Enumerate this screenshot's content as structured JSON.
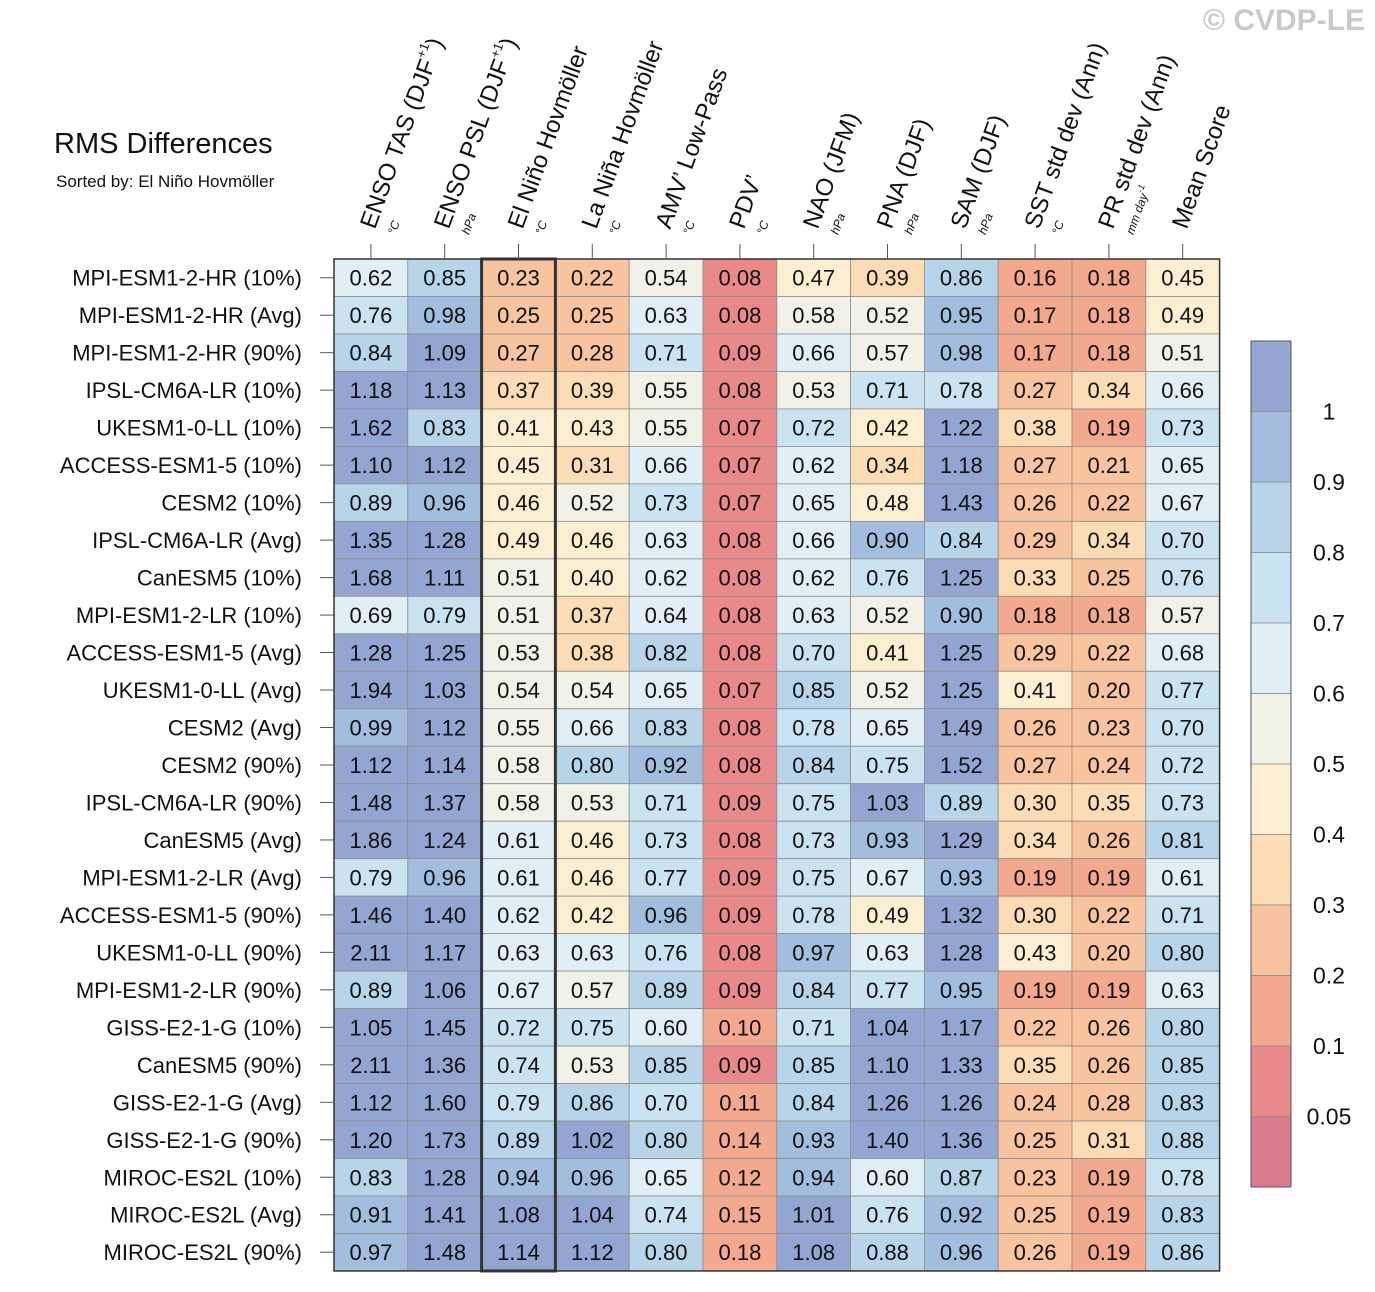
{
  "watermark": "© CVDP-LE",
  "chart_data": {
    "type": "heatmap",
    "title": "RMS Differences",
    "subtitle": "Sorted by: El Niño Hovmöller",
    "columns": [
      {
        "label": "ENSO TAS (DJF",
        "sup": "+1",
        "close": ")",
        "unit": "°C"
      },
      {
        "label": "ENSO PSL (DJF",
        "sup": "+1",
        "close": ")",
        "unit": "hPa"
      },
      {
        "label": "El Niño Hovmöller",
        "unit": "°C"
      },
      {
        "label": "La Niña Hovmöller",
        "unit": "°C"
      },
      {
        "label": "AMV’ Low-Pass",
        "unit": "°C"
      },
      {
        "label": "PDV’",
        "unit": "°C"
      },
      {
        "label": "NAO (JFM)",
        "unit": "hPa"
      },
      {
        "label": "PNA (DJF)",
        "unit": "hPa"
      },
      {
        "label": "SAM (DJF)",
        "unit": "hPa"
      },
      {
        "label": "SST std dev (Ann)",
        "unit": "°C"
      },
      {
        "label": "PR std dev (Ann)",
        "unit": "mm day",
        "unit_sup": "-1"
      },
      {
        "label": "Mean Score",
        "unit": ""
      }
    ],
    "sorted_column": "El Niño Hovmöller",
    "rows": [
      {
        "name": "MPI-ESM1-2-HR (10%)",
        "values": [
          0.62,
          0.85,
          0.23,
          0.22,
          0.54,
          0.08,
          0.47,
          0.39,
          0.86,
          0.16,
          0.18,
          0.45
        ]
      },
      {
        "name": "MPI-ESM1-2-HR (Avg)",
        "values": [
          0.76,
          0.98,
          0.25,
          0.25,
          0.63,
          0.08,
          0.58,
          0.52,
          0.95,
          0.17,
          0.18,
          0.49
        ]
      },
      {
        "name": "MPI-ESM1-2-HR (90%)",
        "values": [
          0.84,
          1.09,
          0.27,
          0.28,
          0.71,
          0.09,
          0.66,
          0.57,
          0.98,
          0.17,
          0.18,
          0.51
        ]
      },
      {
        "name": "IPSL-CM6A-LR (10%)",
        "values": [
          1.18,
          1.13,
          0.37,
          0.39,
          0.55,
          0.08,
          0.53,
          0.71,
          0.78,
          0.27,
          0.34,
          0.66
        ]
      },
      {
        "name": "UKESM1-0-LL (10%)",
        "values": [
          1.62,
          0.83,
          0.41,
          0.43,
          0.55,
          0.07,
          0.72,
          0.42,
          1.22,
          0.38,
          0.19,
          0.73
        ]
      },
      {
        "name": "ACCESS-ESM1-5 (10%)",
        "values": [
          1.1,
          1.12,
          0.45,
          0.31,
          0.66,
          0.07,
          0.62,
          0.34,
          1.18,
          0.27,
          0.21,
          0.65
        ]
      },
      {
        "name": "CESM2 (10%)",
        "values": [
          0.89,
          0.96,
          0.46,
          0.52,
          0.73,
          0.07,
          0.65,
          0.48,
          1.43,
          0.26,
          0.22,
          0.67
        ]
      },
      {
        "name": "IPSL-CM6A-LR (Avg)",
        "values": [
          1.35,
          1.28,
          0.49,
          0.46,
          0.63,
          0.08,
          0.66,
          0.9,
          0.84,
          0.29,
          0.34,
          0.7
        ]
      },
      {
        "name": "CanESM5 (10%)",
        "values": [
          1.68,
          1.11,
          0.51,
          0.4,
          0.62,
          0.08,
          0.62,
          0.76,
          1.25,
          0.33,
          0.25,
          0.76
        ]
      },
      {
        "name": "MPI-ESM1-2-LR (10%)",
        "values": [
          0.69,
          0.79,
          0.51,
          0.37,
          0.64,
          0.08,
          0.63,
          0.52,
          0.9,
          0.18,
          0.18,
          0.57
        ]
      },
      {
        "name": "ACCESS-ESM1-5 (Avg)",
        "values": [
          1.28,
          1.25,
          0.53,
          0.38,
          0.82,
          0.08,
          0.7,
          0.41,
          1.25,
          0.29,
          0.22,
          0.68
        ]
      },
      {
        "name": "UKESM1-0-LL (Avg)",
        "values": [
          1.94,
          1.03,
          0.54,
          0.54,
          0.65,
          0.07,
          0.85,
          0.52,
          1.25,
          0.41,
          0.2,
          0.77
        ]
      },
      {
        "name": "CESM2 (Avg)",
        "values": [
          0.99,
          1.12,
          0.55,
          0.66,
          0.83,
          0.08,
          0.78,
          0.65,
          1.49,
          0.26,
          0.23,
          0.7
        ]
      },
      {
        "name": "CESM2 (90%)",
        "values": [
          1.12,
          1.14,
          0.58,
          0.8,
          0.92,
          0.08,
          0.84,
          0.75,
          1.52,
          0.27,
          0.24,
          0.72
        ]
      },
      {
        "name": "IPSL-CM6A-LR (90%)",
        "values": [
          1.48,
          1.37,
          0.58,
          0.53,
          0.71,
          0.09,
          0.75,
          1.03,
          0.89,
          0.3,
          0.35,
          0.73
        ]
      },
      {
        "name": "CanESM5 (Avg)",
        "values": [
          1.86,
          1.24,
          0.61,
          0.46,
          0.73,
          0.08,
          0.73,
          0.93,
          1.29,
          0.34,
          0.26,
          0.81
        ]
      },
      {
        "name": "MPI-ESM1-2-LR (Avg)",
        "values": [
          0.79,
          0.96,
          0.61,
          0.46,
          0.77,
          0.09,
          0.75,
          0.67,
          0.93,
          0.19,
          0.19,
          0.61
        ]
      },
      {
        "name": "ACCESS-ESM1-5 (90%)",
        "values": [
          1.46,
          1.4,
          0.62,
          0.42,
          0.96,
          0.09,
          0.78,
          0.49,
          1.32,
          0.3,
          0.22,
          0.71
        ]
      },
      {
        "name": "UKESM1-0-LL (90%)",
        "values": [
          2.11,
          1.17,
          0.63,
          0.63,
          0.76,
          0.08,
          0.97,
          0.63,
          1.28,
          0.43,
          0.2,
          0.8
        ]
      },
      {
        "name": "MPI-ESM1-2-LR (90%)",
        "values": [
          0.89,
          1.06,
          0.67,
          0.57,
          0.89,
          0.09,
          0.84,
          0.77,
          0.95,
          0.19,
          0.19,
          0.63
        ]
      },
      {
        "name": "GISS-E2-1-G (10%)",
        "values": [
          1.05,
          1.45,
          0.72,
          0.75,
          0.6,
          0.1,
          0.71,
          1.04,
          1.17,
          0.22,
          0.26,
          0.8
        ]
      },
      {
        "name": "CanESM5 (90%)",
        "values": [
          2.11,
          1.36,
          0.74,
          0.53,
          0.85,
          0.09,
          0.85,
          1.1,
          1.33,
          0.35,
          0.26,
          0.85
        ]
      },
      {
        "name": "GISS-E2-1-G (Avg)",
        "values": [
          1.12,
          1.6,
          0.79,
          0.86,
          0.7,
          0.11,
          0.84,
          1.26,
          1.26,
          0.24,
          0.28,
          0.83
        ]
      },
      {
        "name": "GISS-E2-1-G (90%)",
        "values": [
          1.2,
          1.73,
          0.89,
          1.02,
          0.8,
          0.14,
          0.93,
          1.4,
          1.36,
          0.25,
          0.31,
          0.88
        ]
      },
      {
        "name": "MIROC-ES2L (10%)",
        "values": [
          0.83,
          1.28,
          0.94,
          0.96,
          0.65,
          0.12,
          0.94,
          0.6,
          0.87,
          0.23,
          0.19,
          0.78
        ]
      },
      {
        "name": "MIROC-ES2L (Avg)",
        "values": [
          0.91,
          1.41,
          1.08,
          1.04,
          0.74,
          0.15,
          1.01,
          0.76,
          0.92,
          0.25,
          0.19,
          0.83
        ]
      },
      {
        "name": "MIROC-ES2L (90%)",
        "values": [
          0.97,
          1.48,
          1.14,
          1.12,
          0.8,
          0.18,
          1.08,
          0.88,
          0.96,
          0.26,
          0.19,
          0.86
        ]
      }
    ],
    "colorbar": {
      "labels": [
        "1",
        "0.9",
        "0.8",
        "0.7",
        "0.6",
        "0.5",
        "0.4",
        "0.3",
        "0.2",
        "0.1",
        "0.05"
      ],
      "bounds": [
        0.05,
        0.1,
        0.2,
        0.3,
        0.4,
        0.5,
        0.6,
        0.7,
        0.8,
        0.9,
        1
      ],
      "colors_low_to_high": [
        "#d97c8e",
        "#e88a8a",
        "#f2a98e",
        "#f8c4a0",
        "#fcdcb4",
        "#fcefd1",
        "#f1f1e8",
        "#e0eef5",
        "#cae3f0",
        "#b7d4e9",
        "#a2bddd",
        "#93a6d1"
      ]
    }
  }
}
